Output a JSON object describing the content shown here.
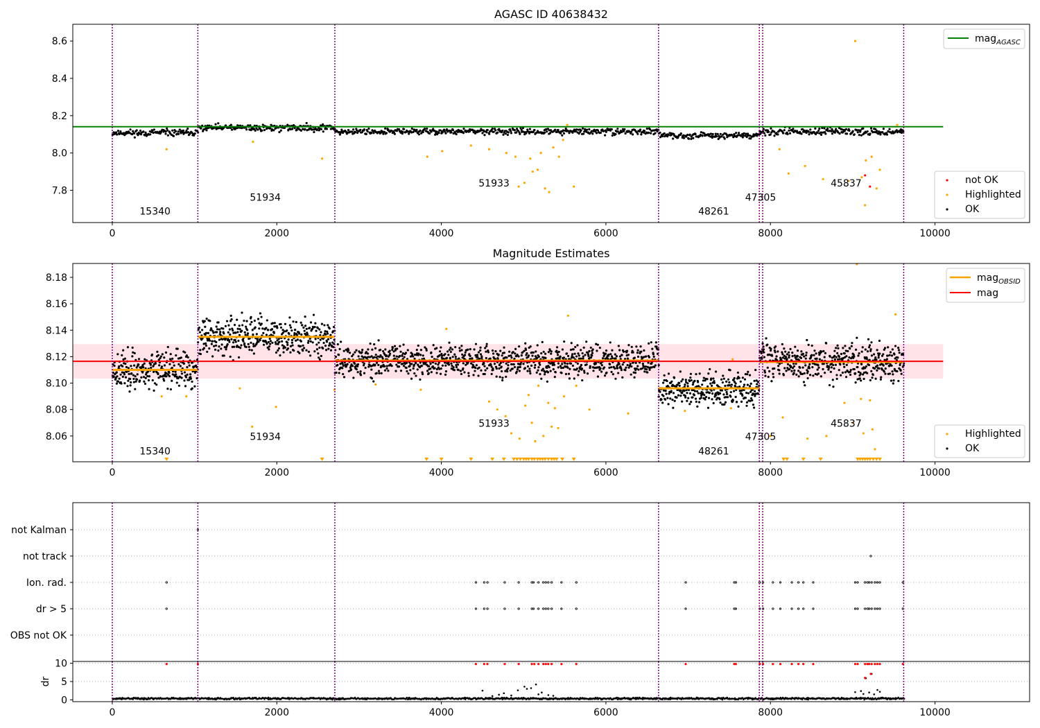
{
  "chart_data": [
    {
      "type": "scatter",
      "title": "AGASC ID 40638432",
      "xlabel": "",
      "ylabel": "",
      "xlim": [
        -480,
        11150
      ],
      "ylim": [
        7.627,
        8.69
      ],
      "xticks": [
        0,
        2000,
        4000,
        6000,
        8000,
        10000
      ],
      "yticks": [
        7.8,
        8.0,
        8.2,
        8.4,
        8.6
      ],
      "ytick_decimals": 1,
      "obsid_boundaries": [
        0,
        1040,
        2705,
        6640,
        7865,
        7905,
        9620
      ],
      "obsid_labels": [
        {
          "text": "15340",
          "x": 520,
          "y": 7.67
        },
        {
          "text": "51934",
          "x": 1860,
          "y": 7.745
        },
        {
          "text": "51933",
          "x": 4640,
          "y": 7.82
        },
        {
          "text": "48261",
          "x": 7310,
          "y": 7.67
        },
        {
          "text": "47305",
          "x": 7880,
          "y": 7.745
        },
        {
          "text": "45837",
          "x": 8920,
          "y": 7.82
        }
      ],
      "mag_agasc": {
        "value": 8.141,
        "x_range": [
          -480,
          10100
        ],
        "color": "#008000"
      },
      "ok_bands": [
        {
          "x": [
            0,
            1040
          ],
          "mean": 8.108,
          "spread": 0.009
        },
        {
          "x": [
            1040,
            2705
          ],
          "mean": 8.135,
          "spread": 0.009
        },
        {
          "x": [
            2705,
            6640
          ],
          "mean": 8.115,
          "spread": 0.008
        },
        {
          "x": [
            6640,
            7865
          ],
          "mean": 8.094,
          "spread": 0.007
        },
        {
          "x": [
            7865,
            9620
          ],
          "mean": 8.114,
          "spread": 0.009
        }
      ],
      "highlighted": [
        [
          660,
          8.02
        ],
        [
          1710,
          8.06
        ],
        [
          2550,
          7.97
        ],
        [
          3830,
          7.98
        ],
        [
          4010,
          8.01
        ],
        [
          4360,
          8.04
        ],
        [
          4580,
          8.02
        ],
        [
          4790,
          8.0
        ],
        [
          4900,
          7.98
        ],
        [
          4940,
          7.82
        ],
        [
          5010,
          7.84
        ],
        [
          5080,
          7.97
        ],
        [
          5110,
          7.9
        ],
        [
          5170,
          7.91
        ],
        [
          5210,
          8.0
        ],
        [
          5260,
          7.81
        ],
        [
          5310,
          7.79
        ],
        [
          5360,
          8.03
        ],
        [
          5430,
          7.98
        ],
        [
          5480,
          8.07
        ],
        [
          5530,
          8.15
        ],
        [
          5610,
          7.82
        ],
        [
          8110,
          8.02
        ],
        [
          8220,
          7.89
        ],
        [
          8420,
          7.93
        ],
        [
          8640,
          7.86
        ],
        [
          8950,
          7.85
        ],
        [
          9030,
          8.6
        ],
        [
          9110,
          7.87
        ],
        [
          9150,
          7.72
        ],
        [
          9160,
          7.96
        ],
        [
          9230,
          7.98
        ],
        [
          9290,
          7.81
        ],
        [
          9330,
          7.91
        ],
        [
          9540,
          8.15
        ]
      ],
      "not_ok": [
        [
          9150,
          7.88
        ],
        [
          9210,
          7.82
        ]
      ],
      "legend_lines": [
        {
          "label": "mag",
          "sub": "AGASC",
          "color": "#008000"
        }
      ],
      "legend_points": [
        {
          "label": "not OK",
          "color": "#ff0000"
        },
        {
          "label": "Highlighted",
          "color": "#ffa500"
        },
        {
          "label": "OK",
          "color": "#000000"
        }
      ]
    },
    {
      "type": "scatter",
      "title": "Magnitude Estimates",
      "xlabel": "",
      "ylabel": "",
      "xlim": [
        -480,
        11150
      ],
      "ylim": [
        8.0405,
        8.1905
      ],
      "xticks": [
        0,
        2000,
        4000,
        6000,
        8000,
        10000
      ],
      "yticks": [
        8.06,
        8.08,
        8.1,
        8.12,
        8.14,
        8.16,
        8.18
      ],
      "ytick_decimals": 2,
      "obsid_boundaries": [
        0,
        1040,
        2705,
        6640,
        7865,
        7905,
        9620
      ],
      "obsid_labels": [
        {
          "text": "15340",
          "x": 520,
          "y": 8.046
        },
        {
          "text": "51934",
          "x": 1860,
          "y": 8.057
        },
        {
          "text": "51933",
          "x": 4640,
          "y": 8.067
        },
        {
          "text": "48261",
          "x": 7310,
          "y": 8.046
        },
        {
          "text": "47305",
          "x": 7880,
          "y": 8.057
        },
        {
          "text": "45837",
          "x": 8920,
          "y": 8.067
        }
      ],
      "mag": {
        "value": 8.1165,
        "x_range": [
          -480,
          10100
        ],
        "band": [
          8.1035,
          8.1295
        ],
        "color": "#ff0000"
      },
      "mag_obsid": [
        {
          "x": [
            0,
            1040
          ],
          "value": 8.11
        },
        {
          "x": [
            1040,
            2705
          ],
          "value": 8.135
        },
        {
          "x": [
            2705,
            6640
          ],
          "value": 8.117
        },
        {
          "x": [
            6640,
            7865
          ],
          "value": 8.096
        },
        {
          "x": [
            7865,
            9620
          ],
          "value": 8.116
        }
      ],
      "ok_bands": [
        {
          "x": [
            0,
            1040
          ],
          "mean": 8.11,
          "spread": 0.007
        },
        {
          "x": [
            1040,
            2705
          ],
          "mean": 8.135,
          "spread": 0.007
        },
        {
          "x": [
            2705,
            6640
          ],
          "mean": 8.117,
          "spread": 0.006
        },
        {
          "x": [
            6640,
            7865
          ],
          "mean": 8.096,
          "spread": 0.006
        },
        {
          "x": [
            7865,
            9620
          ],
          "mean": 8.116,
          "spread": 0.007
        }
      ],
      "highlighted": [
        [
          600,
          8.09
        ],
        [
          900,
          8.09
        ],
        [
          1550,
          8.096
        ],
        [
          1700,
          8.067
        ],
        [
          1990,
          8.082
        ],
        [
          2700,
          8.095
        ],
        [
          3200,
          8.099
        ],
        [
          3750,
          8.095
        ],
        [
          4060,
          8.141
        ],
        [
          4580,
          8.086
        ],
        [
          4680,
          8.08
        ],
        [
          4780,
          8.075
        ],
        [
          4850,
          8.062
        ],
        [
          4950,
          8.058
        ],
        [
          5020,
          8.083
        ],
        [
          5060,
          8.091
        ],
        [
          5100,
          8.07
        ],
        [
          5140,
          8.056
        ],
        [
          5180,
          8.098
        ],
        [
          5240,
          8.06
        ],
        [
          5300,
          8.085
        ],
        [
          5340,
          8.067
        ],
        [
          5380,
          8.081
        ],
        [
          5420,
          8.066
        ],
        [
          5490,
          8.09
        ],
        [
          5540,
          8.151
        ],
        [
          5640,
          8.098
        ],
        [
          5800,
          8.08
        ],
        [
          6270,
          8.077
        ],
        [
          6960,
          8.079
        ],
        [
          7520,
          8.081
        ],
        [
          7540,
          8.118
        ],
        [
          8000,
          8.06
        ],
        [
          8150,
          8.074
        ],
        [
          8450,
          8.058
        ],
        [
          8680,
          8.06
        ],
        [
          8900,
          8.085
        ],
        [
          9000,
          8.07
        ],
        [
          9100,
          8.088
        ],
        [
          9130,
          8.062
        ],
        [
          9210,
          8.087
        ],
        [
          9240,
          8.065
        ],
        [
          9270,
          8.05
        ],
        [
          9050,
          8.19
        ],
        [
          9520,
          8.152
        ]
      ],
      "below_range": [
        660,
        2550,
        3820,
        4000,
        4360,
        4620,
        4760,
        4880,
        4920,
        4960,
        5000,
        5030,
        5060,
        5100,
        5130,
        5170,
        5200,
        5230,
        5260,
        5300,
        5340,
        5370,
        5400,
        5470,
        5610,
        8160,
        8200,
        8400,
        8610,
        9060,
        9090,
        9120,
        9150,
        9180,
        9210,
        9250,
        9290,
        9330
      ],
      "legend_lines": [
        {
          "label": "mag",
          "sub": "OBSID",
          "color": "#ffa500"
        },
        {
          "label": "mag",
          "sub": "",
          "color": "#ff0000"
        }
      ],
      "legend_points": [
        {
          "label": "Highlighted",
          "color": "#ffa500"
        },
        {
          "label": "OK",
          "color": "#000000"
        }
      ]
    },
    {
      "type": "scatter",
      "title": "",
      "xlabel": "",
      "ylabel": "",
      "xlim": [
        -480,
        11150
      ],
      "categories": [
        "not Kalman",
        "not track",
        "Ion. rad.",
        "dr > 5",
        "OBS not OK"
      ],
      "obsid_boundaries": [
        0,
        1040,
        2705,
        6640,
        7865,
        7905,
        9620
      ],
      "flags": {
        "not Kalman": [
          1040
        ],
        "not track": [
          9220
        ],
        "Ion. rad.": [
          660,
          4420,
          4520,
          4560,
          4770,
          4940,
          5100,
          5120,
          5180,
          5240,
          5270,
          5300,
          5340,
          5460,
          5640,
          6970,
          7560,
          7580,
          7870,
          7910,
          8030,
          8120,
          8260,
          8340,
          8400,
          8520,
          9030,
          9060,
          9150,
          9180,
          9200,
          9230,
          9270,
          9300,
          9330,
          9610
        ],
        "dr > 5": [
          660,
          4420,
          4520,
          4560,
          4770,
          4940,
          5100,
          5120,
          5180,
          5240,
          5270,
          5300,
          5340,
          5460,
          5640,
          6970,
          7560,
          7580,
          7870,
          7910,
          8030,
          8120,
          8260,
          8340,
          8400,
          8520,
          9030,
          9060,
          9150,
          9180,
          9200,
          9230,
          9270,
          9300,
          9330,
          9610
        ],
        "OBS not OK": []
      }
    },
    {
      "type": "scatter",
      "title": "",
      "xlabel": "",
      "ylabel": "dr",
      "xlim": [
        -480,
        11150
      ],
      "ylim": [
        -0.5,
        10.5
      ],
      "xticks": [
        0,
        2000,
        4000,
        6000,
        8000,
        10000
      ],
      "yticks": [
        0,
        5,
        10
      ],
      "ytick_decimals": 0,
      "obsid_boundaries": [
        0,
        1040,
        2705,
        6640,
        7865,
        7905,
        9620
      ],
      "baseline": {
        "mean": 0.35,
        "spread": 0.3
      },
      "scatter_points": [
        [
          4500,
          2.5
        ],
        [
          4620,
          1.0
        ],
        [
          4700,
          1.4
        ],
        [
          4760,
          1.8
        ],
        [
          4850,
          1.2
        ],
        [
          4930,
          2.6
        ],
        [
          5010,
          3.6
        ],
        [
          5040,
          3.0
        ],
        [
          5090,
          3.2
        ],
        [
          5150,
          4.2
        ],
        [
          5180,
          1.5
        ],
        [
          5220,
          2.0
        ],
        [
          5300,
          1.3
        ],
        [
          5360,
          1.1
        ],
        [
          9030,
          2.1
        ],
        [
          9100,
          2.4
        ],
        [
          9130,
          1.6
        ],
        [
          9160,
          5.9
        ],
        [
          9200,
          2.0
        ],
        [
          9230,
          7.1
        ],
        [
          9260,
          1.5
        ],
        [
          9300,
          2.7
        ],
        [
          9330,
          2.2
        ]
      ],
      "red_points": [
        [
          660,
          9.8
        ],
        [
          1040,
          9.8
        ],
        [
          4420,
          9.8
        ],
        [
          4520,
          9.8
        ],
        [
          4560,
          9.8
        ],
        [
          4770,
          9.8
        ],
        [
          4940,
          9.8
        ],
        [
          5100,
          9.8
        ],
        [
          5130,
          9.8
        ],
        [
          5180,
          9.8
        ],
        [
          5240,
          9.8
        ],
        [
          5270,
          9.8
        ],
        [
          5300,
          9.8
        ],
        [
          5340,
          9.8
        ],
        [
          5460,
          9.8
        ],
        [
          5640,
          9.8
        ],
        [
          6970,
          9.8
        ],
        [
          7560,
          9.8
        ],
        [
          7580,
          9.8
        ],
        [
          7870,
          9.8
        ],
        [
          7910,
          9.8
        ],
        [
          8030,
          9.8
        ],
        [
          8120,
          9.8
        ],
        [
          8260,
          9.8
        ],
        [
          8340,
          9.8
        ],
        [
          8400,
          9.8
        ],
        [
          8520,
          9.8
        ],
        [
          9030,
          9.8
        ],
        [
          9060,
          9.8
        ],
        [
          9150,
          9.8
        ],
        [
          9180,
          9.8
        ],
        [
          9200,
          9.8
        ],
        [
          9230,
          9.8
        ],
        [
          9270,
          9.8
        ],
        [
          9300,
          9.8
        ],
        [
          9330,
          9.8
        ],
        [
          9610,
          9.8
        ],
        [
          9150,
          6.0
        ],
        [
          9220,
          7.1
        ]
      ]
    }
  ]
}
